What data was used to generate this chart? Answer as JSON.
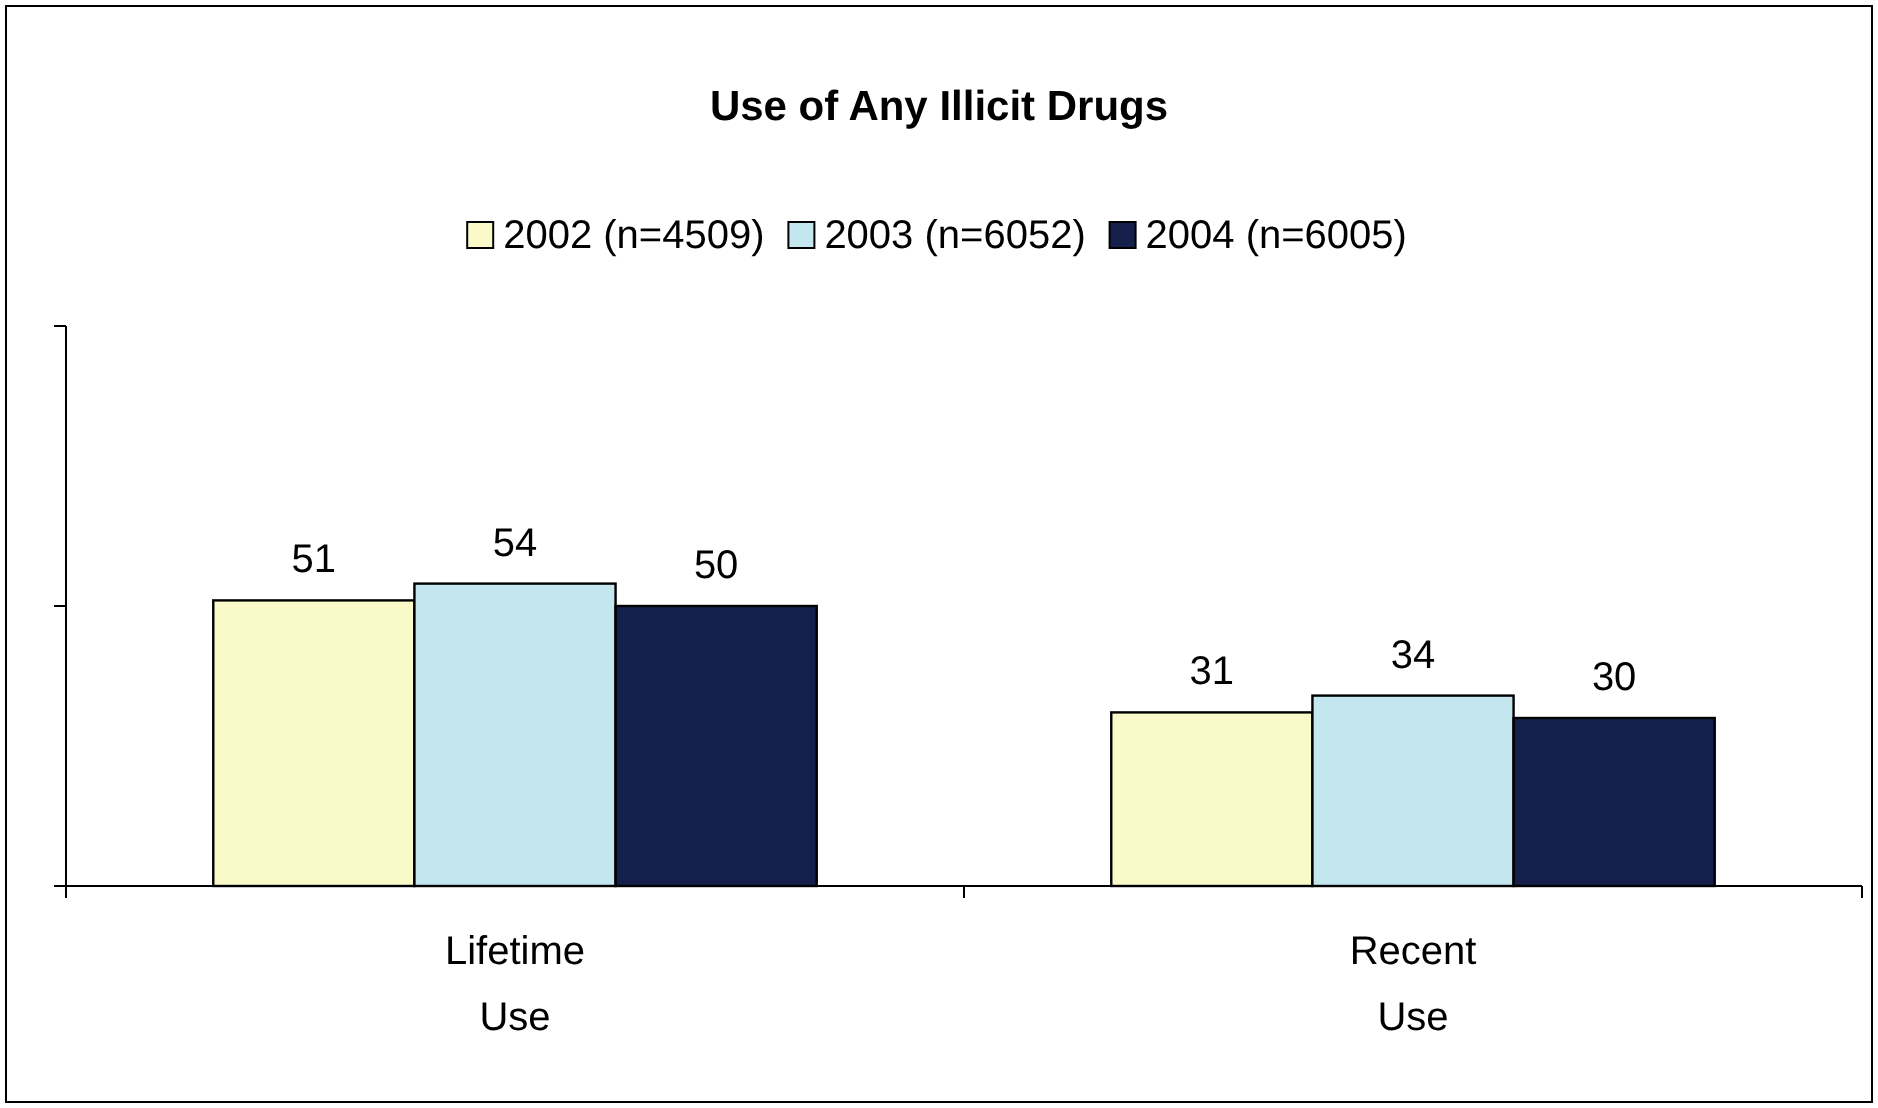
{
  "chart_data": {
    "type": "bar",
    "title": "Use of Any Illicit Drugs",
    "categories": [
      "Lifetime Use",
      "Recent Use"
    ],
    "series": [
      {
        "name": "2002 (n=4509)",
        "color": "#fafac8",
        "values": [
          51,
          31
        ]
      },
      {
        "name": "2003 (n=6052)",
        "color": "#c4e6ee",
        "values": [
          54,
          34
        ]
      },
      {
        "name": "2004 (n=6005)",
        "color": "#141f4b",
        "values": [
          50,
          30
        ]
      }
    ],
    "ylim": [
      0,
      100
    ],
    "yticks": [
      {
        "value": 0,
        "label": null
      },
      {
        "value": 50,
        "label": null
      },
      {
        "value": 100,
        "label": null
      }
    ],
    "tick_labels": "x",
    "data_labels": true,
    "legend": "top",
    "grid": false
  }
}
